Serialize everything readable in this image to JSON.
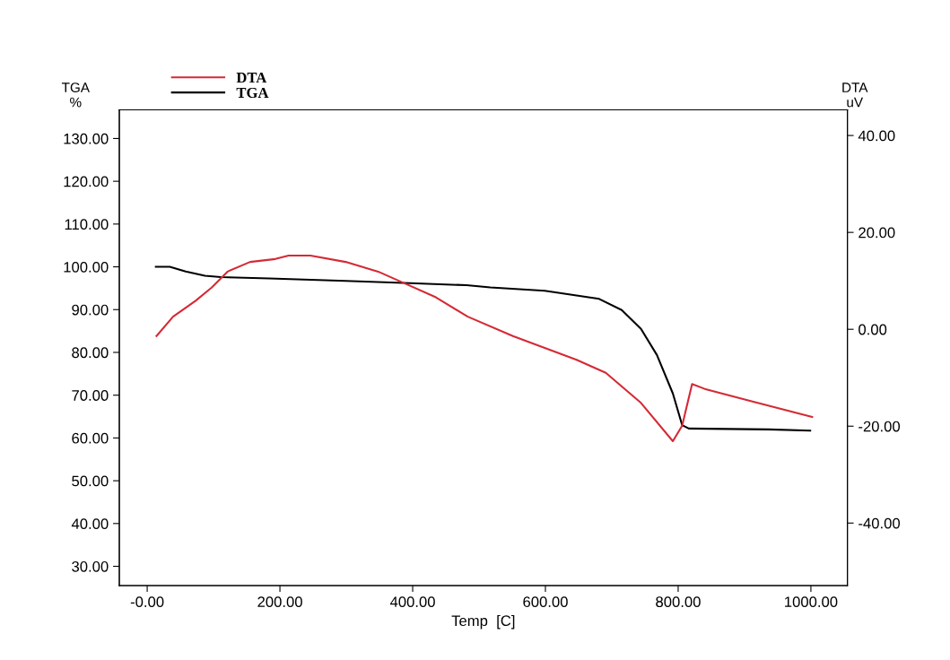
{
  "chart_data": {
    "type": "line",
    "xlabel": "Temp  [C]",
    "ylabel": "TGA\n%",
    "y2label": "DTA\nuV",
    "legend": "top left",
    "grid": false,
    "marker": "none",
    "line_style": "solid",
    "xlim": [
      -42,
      1055
    ],
    "xticks": [
      {
        "value": 0,
        "label": "-0.00"
      },
      {
        "value": 200,
        "label": "200.00"
      },
      {
        "value": 400,
        "label": "400.00"
      },
      {
        "value": 600,
        "label": "600.00"
      },
      {
        "value": 800,
        "label": "800.00"
      },
      {
        "value": 1000,
        "label": "1000.00"
      }
    ],
    "ylim": [
      25.5,
      136.7
    ],
    "yticks": [
      {
        "value": 30,
        "label": "30.00"
      },
      {
        "value": 40,
        "label": "40.00"
      },
      {
        "value": 50,
        "label": "50.00"
      },
      {
        "value": 60,
        "label": "60.00"
      },
      {
        "value": 70,
        "label": "70.00"
      },
      {
        "value": 80,
        "label": "80.00"
      },
      {
        "value": 90,
        "label": "90.00"
      },
      {
        "value": 100,
        "label": "100.00"
      },
      {
        "value": 110,
        "label": "110.00"
      },
      {
        "value": 120,
        "label": "120.00"
      },
      {
        "value": 130,
        "label": "130.00"
      }
    ],
    "y2lim": [
      -52.9,
      45.3
    ],
    "y2ticks": [
      {
        "value": -40,
        "label": "-40.00"
      },
      {
        "value": -20,
        "label": "-20.00"
      },
      {
        "value": 0,
        "label": "0.00"
      },
      {
        "value": 20,
        "label": "20.00"
      },
      {
        "value": 40,
        "label": "40.00"
      }
    ],
    "series": [
      {
        "name": "DTA",
        "color": "#d42a35",
        "axis": "y2",
        "x": [
          14,
          39,
          73,
          97,
          121,
          155,
          193,
          213,
          246,
          299,
          348,
          386,
          435,
          483,
          551,
          647,
          691,
          744,
          792,
          806,
          821,
          840,
          912,
          1002
        ],
        "values": [
          -1.4,
          2.6,
          5.9,
          8.6,
          11.9,
          13.9,
          14.5,
          15.2,
          15.2,
          13.9,
          11.9,
          9.6,
          6.6,
          2.6,
          -1.4,
          -6.3,
          -9.0,
          -15.2,
          -23.1,
          -19.9,
          -11.3,
          -12.3,
          -14.9,
          -18.1
        ]
      },
      {
        "name": "TGA",
        "color": "#000000",
        "x": [
          13,
          34,
          58,
          87,
          111,
          184,
          299,
          396,
          481,
          517,
          599,
          681,
          715,
          744,
          768,
          792,
          806,
          816,
          937,
          999
        ],
        "values": [
          100,
          100,
          98.9,
          97.9,
          97.6,
          97.3,
          96.7,
          96.2,
          95.7,
          95.2,
          94.4,
          92.5,
          89.9,
          85.5,
          79.4,
          70.4,
          63.0,
          62.2,
          62.0,
          61.7
        ]
      }
    ]
  }
}
